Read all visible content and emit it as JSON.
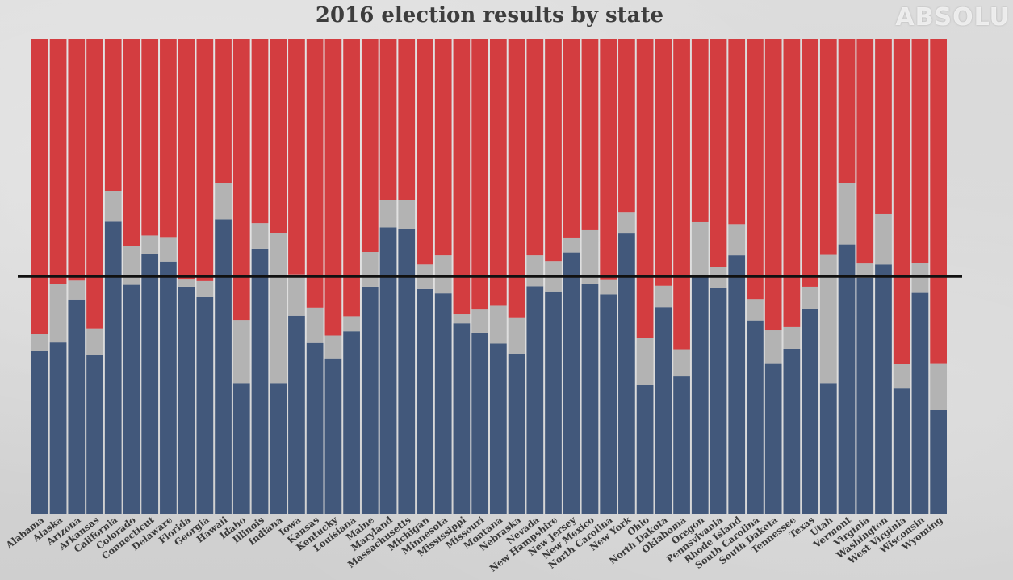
{
  "title": "2016 election results by state",
  "watermark": "ABSOLU",
  "chart_data": {
    "type": "bar",
    "stacked": true,
    "ylim": [
      0,
      100
    ],
    "reference_line": 50,
    "colors": {
      "dem": "#42587b",
      "other": "#b3b3b3",
      "rep": "#d33d40",
      "line": "#111111"
    },
    "categories": [
      "Alabama",
      "Alaska",
      "Arizona",
      "Arkansas",
      "California",
      "Colorado",
      "Connecticut",
      "Delaware",
      "Florida",
      "Georgia",
      "Hawaii",
      "Idaho",
      "Illinois",
      "Indiana",
      "Iowa",
      "Kansas",
      "Kentucky",
      "Louisiana",
      "Maine",
      "Maryland",
      "Massachusetts",
      "Michigan",
      "Minnesota",
      "Mississippi",
      "Missouri",
      "Montana",
      "Nebraska",
      "Nevada",
      "New Hampshire",
      "New Jersey",
      "New Mexico",
      "North Carolina",
      "New York",
      "Ohio",
      "North Dakota",
      "Oklahoma",
      "Oregon",
      "Pennsylvania",
      "Rhode Island",
      "South Carolina",
      "South Dakota",
      "Tennessee",
      "Texas",
      "Utah",
      "Vermont",
      "Virginia",
      "Washington",
      "West Virginia",
      "Wisconsin",
      "Wyoming"
    ],
    "series": [
      {
        "key": "dem",
        "values": [
          34.2,
          36.2,
          45.1,
          33.5,
          61.5,
          48.2,
          54.7,
          53.1,
          47.8,
          45.6,
          62.0,
          27.5,
          55.8,
          27.5,
          41.7,
          36.1,
          32.7,
          38.4,
          47.8,
          60.3,
          60.0,
          47.3,
          46.4,
          40.1,
          38.1,
          35.8,
          33.7,
          47.9,
          46.8,
          55.0,
          48.3,
          46.2,
          59.0,
          27.2,
          43.5,
          28.9,
          50.1,
          47.5,
          54.4,
          40.7,
          31.7,
          34.7,
          43.2,
          27.5,
          56.7,
          49.7,
          52.5,
          26.5,
          46.5,
          21.9
        ]
      },
      {
        "key": "other",
        "values": [
          3.6,
          12.2,
          4.0,
          5.5,
          6.5,
          8.1,
          3.9,
          5.0,
          1.5,
          3.4,
          7.6,
          13.3,
          5.4,
          31.6,
          8.7,
          7.3,
          4.8,
          3.2,
          7.3,
          5.8,
          6.1,
          5.2,
          8.0,
          1.9,
          4.9,
          8.0,
          7.5,
          6.5,
          6.4,
          3.0,
          11.4,
          3.0,
          4.4,
          9.8,
          4.5,
          5.7,
          11.3,
          4.4,
          6.6,
          4.5,
          6.9,
          4.6,
          4.6,
          27.0,
          13.0,
          3.0,
          10.6,
          5.0,
          6.3,
          9.8
        ]
      },
      {
        "key": "rep",
        "values": [
          62.2,
          51.6,
          50.9,
          61.0,
          32.0,
          43.7,
          41.4,
          41.9,
          50.7,
          51.0,
          30.4,
          59.2,
          38.8,
          40.9,
          49.6,
          56.6,
          62.5,
          58.4,
          44.9,
          33.9,
          33.9,
          47.5,
          45.6,
          58.0,
          57.0,
          56.2,
          58.8,
          45.6,
          46.8,
          42.0,
          40.3,
          50.8,
          36.6,
          63.0,
          52.0,
          65.4,
          38.6,
          48.1,
          39.0,
          54.8,
          61.4,
          60.7,
          52.2,
          45.5,
          30.3,
          47.3,
          36.9,
          68.5,
          47.2,
          68.3
        ]
      }
    ]
  }
}
